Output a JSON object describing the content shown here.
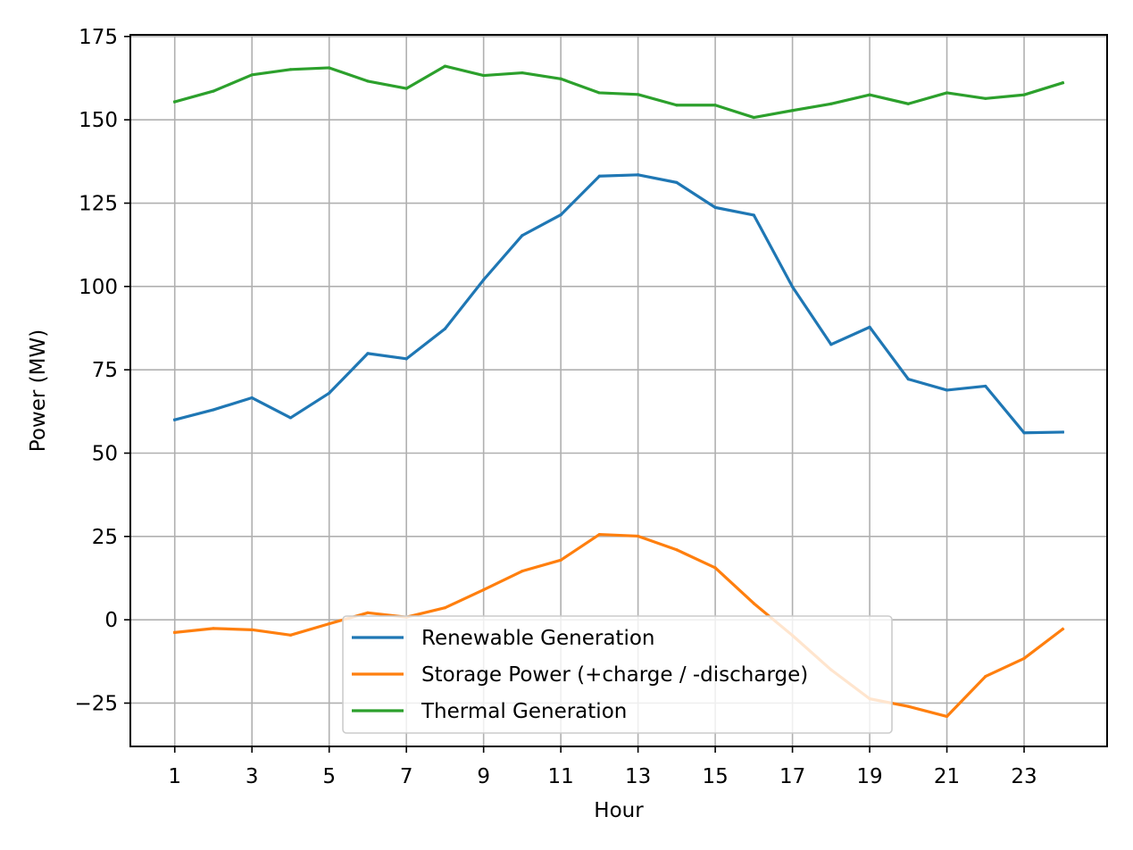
{
  "chart_data": {
    "type": "line",
    "title": "",
    "xlabel": "Hour",
    "ylabel": "Power (MW)",
    "xlim": [
      -0.15,
      25.15
    ],
    "ylim": [
      -38,
      175.5
    ],
    "x": [
      1,
      2,
      3,
      4,
      5,
      6,
      7,
      8,
      9,
      10,
      11,
      12,
      13,
      14,
      15,
      16,
      17,
      18,
      19,
      20,
      21,
      22,
      23,
      24
    ],
    "xticks": [
      1,
      3,
      5,
      7,
      9,
      11,
      13,
      15,
      17,
      19,
      21,
      23
    ],
    "xtick_labels": [
      "1",
      "3",
      "5",
      "7",
      "9",
      "11",
      "13",
      "15",
      "17",
      "19",
      "21",
      "23"
    ],
    "yticks": [
      -25,
      0,
      25,
      50,
      75,
      100,
      125,
      150,
      175
    ],
    "ytick_labels": [
      "−25",
      "0",
      "25",
      "50",
      "75",
      "100",
      "125",
      "150",
      "175"
    ],
    "grid": true,
    "legend_position": "lower center",
    "series": [
      {
        "name": "Renewable Generation",
        "color": "#1f77b4",
        "values": [
          60.0,
          63.0,
          66.6,
          60.6,
          68.0,
          79.9,
          78.3,
          87.3,
          102.0,
          115.3,
          121.5,
          133.1,
          133.5,
          131.2,
          123.7,
          121.4,
          99.9,
          82.6,
          87.8,
          72.2,
          68.9,
          70.1,
          56.1,
          56.3
        ]
      },
      {
        "name": "Storage Power (+charge / -discharge)",
        "color": "#ff7f0e",
        "values": [
          -3.8,
          -2.6,
          -3.0,
          -4.6,
          -1.2,
          2.1,
          0.8,
          3.6,
          9.0,
          14.6,
          17.9,
          25.6,
          25.1,
          21.0,
          15.6,
          4.9,
          -4.7,
          -15.0,
          -23.7,
          -26.0,
          -29.0,
          -17.0,
          -11.6,
          -2.8
        ]
      },
      {
        "name": "Thermal Generation",
        "color": "#2ca02c",
        "values": [
          155.4,
          158.6,
          163.5,
          165.1,
          165.6,
          161.6,
          159.4,
          166.1,
          163.3,
          164.1,
          162.3,
          158.1,
          157.6,
          154.4,
          154.4,
          150.7,
          152.8,
          154.8,
          157.5,
          154.8,
          158.1,
          156.4,
          157.5,
          161.1
        ]
      }
    ]
  }
}
